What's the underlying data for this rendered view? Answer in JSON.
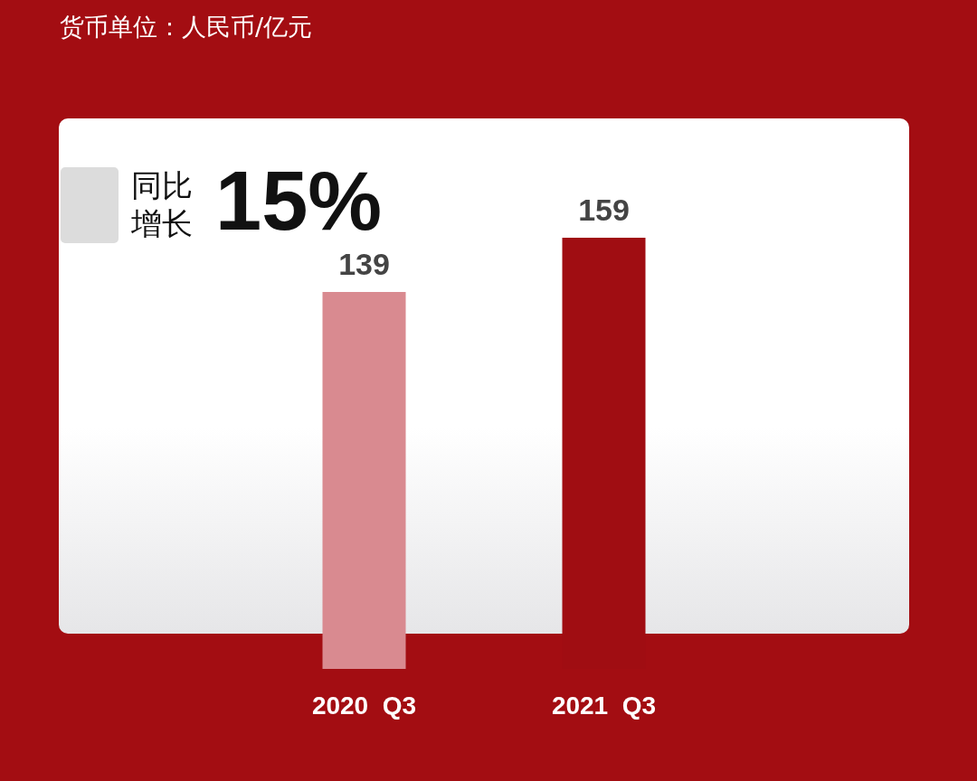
{
  "chart_data": {
    "type": "bar",
    "title": "货币单位：人民币/亿元",
    "annotations": [
      "同比增长",
      "15%"
    ],
    "categories": [
      "2020  Q3",
      "2021  Q3"
    ],
    "values": [
      139,
      159
    ],
    "colors": [
      "#d98a90",
      "#a00d12"
    ],
    "data_labels": true
  }
}
